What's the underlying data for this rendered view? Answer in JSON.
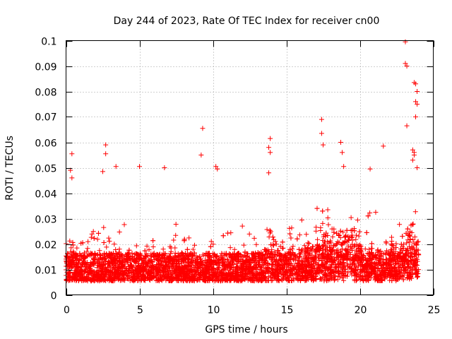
{
  "chart_data": {
    "type": "scatter",
    "title": "Day 244 of 2023, Rate Of TEC Index for receiver cn00",
    "xlabel": "GPS time / hours",
    "ylabel": "ROTI / TECUs",
    "xlim": [
      0,
      25
    ],
    "ylim": [
      0,
      0.1
    ],
    "x_ticks": [
      0,
      5,
      10,
      15,
      20,
      25
    ],
    "y_ticks": [
      0,
      0.01,
      0.02,
      0.03,
      0.04,
      0.05,
      0.06,
      0.07,
      0.08,
      0.09,
      0.1
    ],
    "x_tick_labels": [
      "0",
      "5",
      "10",
      "15",
      "20",
      "25"
    ],
    "y_tick_labels": [
      "0",
      "0.01",
      "0.02",
      "0.03",
      "0.04",
      "0.05",
      "0.06",
      "0.07",
      "0.08",
      "0.09",
      "0.1"
    ],
    "grid": true,
    "marker": "+",
    "color": "#ff0000",
    "series": [
      {
        "name": "ROTI",
        "description": "dense band of points mostly between 0.005 and 0.025 TECU/min, from 0 to 24 h",
        "outliers": [
          {
            "x": 0.4,
            "y": 0.0555
          },
          {
            "x": 0.3,
            "y": 0.049
          },
          {
            "x": 0.4,
            "y": 0.046
          },
          {
            "x": 2.7,
            "y": 0.059
          },
          {
            "x": 2.7,
            "y": 0.0555
          },
          {
            "x": 2.5,
            "y": 0.0485
          },
          {
            "x": 3.4,
            "y": 0.0505
          },
          {
            "x": 5.0,
            "y": 0.0505
          },
          {
            "x": 6.7,
            "y": 0.05
          },
          {
            "x": 9.3,
            "y": 0.0655
          },
          {
            "x": 9.2,
            "y": 0.055
          },
          {
            "x": 10.2,
            "y": 0.0505
          },
          {
            "x": 10.3,
            "y": 0.0495
          },
          {
            "x": 13.9,
            "y": 0.0615
          },
          {
            "x": 13.8,
            "y": 0.058
          },
          {
            "x": 13.9,
            "y": 0.056
          },
          {
            "x": 13.8,
            "y": 0.048
          },
          {
            "x": 17.4,
            "y": 0.069
          },
          {
            "x": 17.4,
            "y": 0.0635
          },
          {
            "x": 17.5,
            "y": 0.059
          },
          {
            "x": 18.7,
            "y": 0.06
          },
          {
            "x": 18.8,
            "y": 0.056
          },
          {
            "x": 18.9,
            "y": 0.0505
          },
          {
            "x": 20.7,
            "y": 0.0495
          },
          {
            "x": 21.6,
            "y": 0.0585
          },
          {
            "x": 23.1,
            "y": 0.0995
          },
          {
            "x": 23.1,
            "y": 0.091
          },
          {
            "x": 23.2,
            "y": 0.09
          },
          {
            "x": 23.7,
            "y": 0.0835
          },
          {
            "x": 23.8,
            "y": 0.083
          },
          {
            "x": 23.9,
            "y": 0.08
          },
          {
            "x": 23.8,
            "y": 0.076
          },
          {
            "x": 23.9,
            "y": 0.075
          },
          {
            "x": 23.8,
            "y": 0.07
          },
          {
            "x": 23.2,
            "y": 0.0665
          },
          {
            "x": 23.6,
            "y": 0.057
          },
          {
            "x": 23.7,
            "y": 0.056
          },
          {
            "x": 23.7,
            "y": 0.055
          },
          {
            "x": 23.6,
            "y": 0.053
          },
          {
            "x": 23.9,
            "y": 0.05
          }
        ]
      }
    ]
  }
}
